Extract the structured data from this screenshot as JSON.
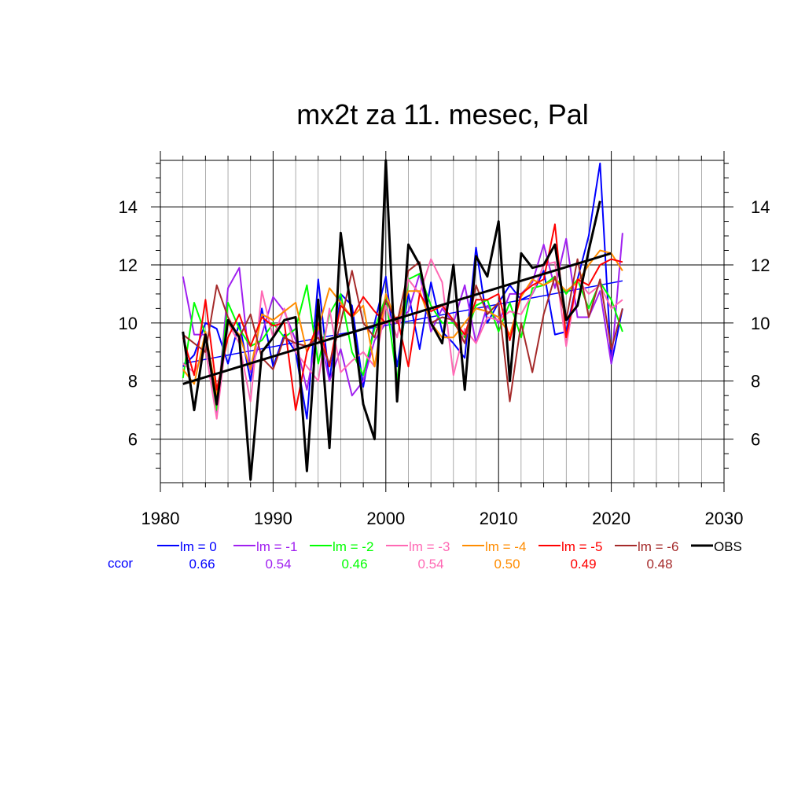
{
  "chart_data": {
    "type": "line",
    "title": "mx2t za 11. mesec, Pal",
    "xlabel": "",
    "ylabel": "",
    "xlim": [
      1980,
      2030
    ],
    "ylim": [
      4.5,
      15.6
    ],
    "x_ticks": [
      "1980",
      "1990",
      "2000",
      "2010",
      "2020",
      "2030"
    ],
    "y_ticks": [
      "6",
      "8",
      "10",
      "12",
      "14"
    ],
    "grid": true,
    "legend_placement": "bottom",
    "ccor_label": "ccor",
    "x": [
      1982,
      1983,
      1984,
      1985,
      1986,
      1987,
      1988,
      1989,
      1990,
      1991,
      1992,
      1993,
      1994,
      1995,
      1996,
      1997,
      1998,
      1999,
      2000,
      2001,
      2002,
      2003,
      2004,
      2005,
      2006,
      2007,
      2008,
      2009,
      2010,
      2011,
      2012,
      2013,
      2014,
      2015,
      2016,
      2017,
      2018,
      2019,
      2020,
      2021
    ],
    "series": [
      {
        "name": "lm = 0",
        "ccor": "0.66",
        "color": "#0000ff",
        "values": [
          8.5,
          8.9,
          10.0,
          9.8,
          8.6,
          10.0,
          8.0,
          10.5,
          8.5,
          9.6,
          9.0,
          6.7,
          11.5,
          8.0,
          11.0,
          10.6,
          7.8,
          10.0,
          11.6,
          8.5,
          11.0,
          9.1,
          11.4,
          9.7,
          9.3,
          8.8,
          12.6,
          10.0,
          10.7,
          11.3,
          10.8,
          11.0,
          11.8,
          9.6,
          9.7,
          11.5,
          13.0,
          15.5,
          8.6,
          10.5
        ],
        "trend": [
          8.6,
          11.45
        ]
      },
      {
        "name": "lm = -1",
        "ccor": "0.54",
        "color": "#a020f0",
        "values": [
          11.6,
          9.6,
          9.6,
          6.9,
          11.2,
          11.9,
          8.3,
          9.6,
          10.9,
          10.4,
          9.4,
          7.7,
          9.8,
          8.0,
          9.1,
          7.5,
          8.0,
          9.4,
          10.0,
          10.0,
          10.4,
          11.7,
          9.7,
          10.5,
          10.0,
          11.3,
          9.3,
          10.6,
          10.0,
          11.0,
          11.0,
          11.4,
          12.7,
          11.2,
          12.9,
          10.2,
          10.2,
          11.1,
          8.6,
          13.1
        ]
      },
      {
        "name": "lm = -2",
        "ccor": "0.46",
        "color": "#00ff00",
        "values": [
          8.1,
          10.7,
          9.6,
          7.0,
          10.7,
          9.8,
          9.2,
          9.4,
          10.0,
          9.5,
          9.8,
          11.3,
          8.6,
          10.3,
          11.0,
          9.0,
          8.2,
          9.8,
          10.9,
          8.0,
          11.5,
          11.7,
          10.6,
          10.0,
          10.0,
          9.5,
          10.6,
          10.8,
          9.7,
          10.7,
          9.5,
          11.2,
          11.3,
          11.6,
          11.0,
          11.5,
          10.5,
          11.4,
          10.8,
          9.7
        ]
      },
      {
        "name": "lm = -3",
        "ccor": "0.54",
        "color": "#ff69b4",
        "values": [
          8.6,
          8.3,
          9.1,
          6.7,
          10.0,
          9.3,
          7.3,
          11.1,
          9.5,
          10.5,
          9.0,
          8.5,
          8.0,
          10.5,
          8.3,
          8.7,
          9.0,
          8.5,
          10.6,
          9.5,
          11.5,
          11.0,
          12.2,
          11.4,
          8.2,
          9.8,
          9.3,
          10.2,
          10.1,
          10.4,
          10.3,
          11.0,
          12.0,
          12.1,
          9.2,
          11.5,
          11.0,
          11.3,
          10.5,
          10.8
        ]
      },
      {
        "name": "lm = -4",
        "ccor": "0.50",
        "color": "#ff8c00",
        "values": [
          8.4,
          7.9,
          9.7,
          7.5,
          10.0,
          9.6,
          8.4,
          10.3,
          10.1,
          10.4,
          10.7,
          9.0,
          9.8,
          11.2,
          10.7,
          10.2,
          10.6,
          8.5,
          11.0,
          10.0,
          11.1,
          11.1,
          10.0,
          9.5,
          9.5,
          10.0,
          10.5,
          10.4,
          10.2,
          9.6,
          10.9,
          11.5,
          11.3,
          11.5,
          11.1,
          11.4,
          12.0,
          12.5,
          12.4,
          11.8
        ]
      },
      {
        "name": "lm = -5",
        "ccor": "0.49",
        "color": "#ff0000",
        "values": [
          9.5,
          8.2,
          10.8,
          7.7,
          9.5,
          10.3,
          9.2,
          10.2,
          9.9,
          10.0,
          7.0,
          9.0,
          10.0,
          8.5,
          10.6,
          10.2,
          10.9,
          10.4,
          10.0,
          10.2,
          8.5,
          11.0,
          10.4,
          10.6,
          10.1,
          9.6,
          10.8,
          10.8,
          11.0,
          9.4,
          11.0,
          11.3,
          11.5,
          13.4,
          9.5,
          11.5,
          11.3,
          12.0,
          12.2,
          12.1
        ]
      },
      {
        "name": "lm = -6",
        "ccor": "0.48",
        "color": "#a52a2a",
        "values": [
          9.6,
          9.3,
          9.0,
          11.3,
          10.2,
          9.5,
          10.3,
          8.8,
          8.4,
          9.5,
          9.3,
          9.2,
          9.5,
          8.6,
          10.0,
          11.8,
          10.0,
          9.5,
          10.8,
          10.0,
          11.8,
          12.1,
          10.0,
          10.2,
          10.1,
          9.3,
          11.3,
          10.3,
          10.7,
          7.3,
          10.0,
          8.3,
          10.3,
          11.6,
          10.1,
          12.2,
          10.2,
          11.5,
          9.1,
          10.5
        ]
      },
      {
        "name": "OBS",
        "ccor": "",
        "color": "#000000",
        "values": [
          9.7,
          7.0,
          9.6,
          7.2,
          10.1,
          9.5,
          4.6,
          9.0,
          9.5,
          10.1,
          10.2,
          4.9,
          10.8,
          5.7,
          13.1,
          10.2,
          7.2,
          6.0,
          15.6,
          7.3,
          12.7,
          12.0,
          10.0,
          9.3,
          12.0,
          7.7,
          12.3,
          11.6,
          13.5,
          8.0,
          12.4,
          11.9,
          12.0,
          12.7,
          10.1,
          10.6,
          12.5,
          14.2,
          null,
          null
        ],
        "trend": [
          7.9,
          12.4
        ]
      }
    ]
  }
}
